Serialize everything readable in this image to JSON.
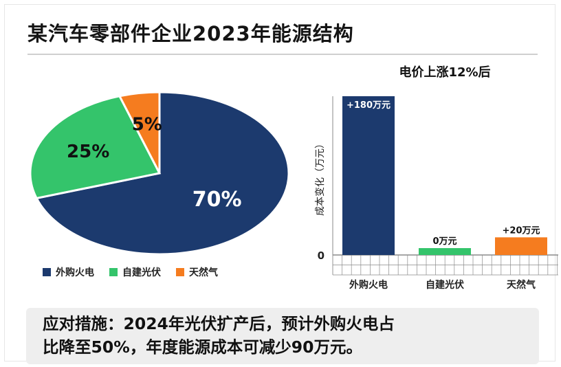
{
  "title": "某汽车零部件企业2023年能源结构",
  "chart_data": [
    {
      "type": "pie",
      "categories": [
        "外购火电",
        "自建光伏",
        "天然气"
      ],
      "values": [
        70,
        25,
        5
      ],
      "labels": [
        "70%",
        "25%",
        "5%"
      ],
      "colors": [
        "#1c3a6e",
        "#34c46b",
        "#f57c1f"
      ],
      "legend": "bottom"
    },
    {
      "type": "bar",
      "title": "电价上涨12%后",
      "ylabel": "成本变化（万元）",
      "categories": [
        "外购火电",
        "自建光伏",
        "天然气"
      ],
      "values": [
        180,
        0,
        20
      ],
      "data_labels": [
        "+180万元",
        "0万元",
        "+20万元"
      ],
      "zero_tick": "0",
      "colors": [
        "#1c3a6e",
        "#34c46b",
        "#f57c1f"
      ],
      "grid": true
    }
  ],
  "note": {
    "line1": "应对措施：2024年光伏扩产后，预计外购火电占",
    "line2": "比降至50%，年度能源成本可减少90万元。"
  }
}
